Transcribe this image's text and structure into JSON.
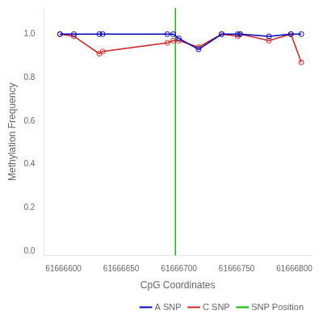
{
  "chart_data": {
    "type": "line",
    "xlabel": "CpG Coordinates",
    "ylabel": "Methylation Frequency",
    "xlim": [
      61666583,
      61666815
    ],
    "ylim": [
      -0.02,
      1.12
    ],
    "xticks": [
      61666600,
      61666650,
      61666700,
      61666750,
      61666800
    ],
    "yticks": [
      {
        "value": 0.0,
        "label": "0.0"
      },
      0.2,
      0.4,
      0.6,
      0.8,
      {
        "value": 1.0,
        "label": "1.0"
      }
    ],
    "grid": false,
    "legend": "lower right",
    "series": [
      {
        "name": "A SNP",
        "color": "#0000bb",
        "marker": "open_circle",
        "line_style": "solid",
        "x": [
          61666597,
          61666609,
          61666631,
          61666634,
          61666690,
          61666695,
          61666700,
          61666717,
          61666737,
          61666751,
          61666753,
          61666778,
          61666797,
          61666806
        ],
        "values": [
          1.0,
          1.0,
          1.0,
          1.0,
          1.0,
          1.0,
          0.98,
          0.93,
          1.0,
          1.0,
          1.0,
          0.99,
          1.0,
          1.0
        ]
      },
      {
        "name": "C SNP",
        "color": "#cc2222",
        "marker": "open_circle",
        "line_style": "solid",
        "x": [
          61666597,
          61666609,
          61666631,
          61666634,
          61666690,
          61666695,
          61666700,
          61666717,
          61666737,
          61666751,
          61666753,
          61666778,
          61666797,
          61666806
        ],
        "values": [
          1.0,
          0.99,
          0.91,
          0.92,
          0.96,
          0.97,
          0.97,
          0.94,
          1.0,
          0.99,
          1.0,
          0.97,
          1.0,
          0.87
        ]
      },
      {
        "name": "SNP Position",
        "type": "vline",
        "color": "#00bb00",
        "line_style": "solid",
        "x": 61666697
      }
    ]
  }
}
